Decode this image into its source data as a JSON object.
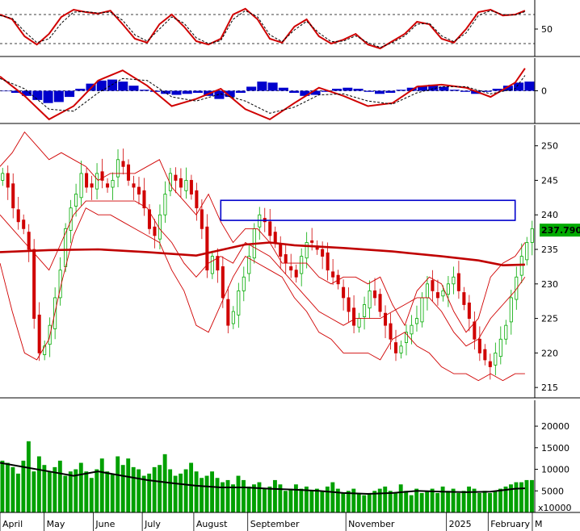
{
  "chart_data": [
    {
      "type": "line",
      "panel": "stochastic",
      "y_ticks": [
        50
      ],
      "reference_levels": [
        80,
        20
      ],
      "ylim": [
        0,
        100
      ],
      "series": [
        {
          "role": "%K",
          "color": "#d00000",
          "x": [
            0,
            5,
            10,
            15,
            20,
            25,
            30,
            35,
            40,
            45,
            50,
            55,
            60,
            65,
            70,
            75,
            80,
            85,
            90,
            95,
            100,
            105,
            110,
            115,
            120,
            125,
            130,
            135,
            140,
            145,
            150,
            155,
            160,
            165,
            170,
            175,
            180,
            185,
            190,
            195,
            200,
            205,
            210,
            214
          ],
          "values": [
            80,
            70,
            35,
            18,
            40,
            75,
            90,
            85,
            82,
            88,
            60,
            30,
            22,
            60,
            80,
            55,
            25,
            18,
            30,
            80,
            92,
            70,
            30,
            22,
            55,
            70,
            35,
            20,
            28,
            40,
            18,
            10,
            25,
            40,
            65,
            60,
            30,
            22,
            50,
            85,
            90,
            78,
            80,
            88
          ]
        },
        {
          "role": "%D",
          "color": "#000000",
          "style": "dashed",
          "x": [
            0,
            5,
            10,
            15,
            20,
            25,
            30,
            35,
            40,
            45,
            50,
            55,
            60,
            65,
            70,
            75,
            80,
            85,
            90,
            95,
            100,
            105,
            110,
            115,
            120,
            125,
            130,
            135,
            140,
            145,
            150,
            155,
            160,
            165,
            170,
            175,
            180,
            185,
            190,
            195,
            200,
            205,
            210,
            214
          ],
          "values": [
            78,
            72,
            45,
            22,
            30,
            62,
            85,
            86,
            83,
            85,
            68,
            38,
            25,
            50,
            75,
            62,
            32,
            20,
            26,
            70,
            88,
            75,
            38,
            24,
            48,
            66,
            42,
            24,
            25,
            36,
            22,
            12,
            22,
            36,
            60,
            62,
            36,
            24,
            42,
            78,
            88,
            80,
            79,
            86
          ]
        }
      ]
    },
    {
      "type": "bar",
      "panel": "macd",
      "y_ticks": [
        0
      ],
      "ylim": [
        -3.2,
        3.2
      ],
      "histogram": [
        0,
        -0.2,
        -0.5,
        -0.9,
        -1.2,
        -1.1,
        -0.6,
        0.2,
        0.7,
        1.0,
        1.1,
        0.9,
        0.5,
        0.1,
        -0.1,
        -0.3,
        -0.4,
        -0.3,
        -0.2,
        -0.5,
        -0.8,
        -0.6,
        -0.2,
        0.4,
        0.9,
        0.8,
        0.3,
        -0.2,
        -0.5,
        -0.4,
        -0.1,
        0.2,
        0.3,
        0.2,
        -0.1,
        -0.3,
        -0.2,
        0.1,
        0.3,
        0.5,
        0.6,
        0.4,
        0.1,
        -0.1,
        -0.3,
        -0.1,
        0.2,
        0.5,
        0.8,
        0.9
      ],
      "series": [
        {
          "role": "MACD",
          "color": "#d00000",
          "x": [
            0,
            10,
            20,
            30,
            40,
            50,
            60,
            70,
            80,
            90,
            100,
            110,
            120,
            130,
            140,
            150,
            160,
            170,
            180,
            190,
            200,
            210,
            214
          ],
          "values": [
            1.4,
            -0.5,
            -2.8,
            -1.5,
            1.0,
            2.0,
            0.5,
            -1.5,
            -0.8,
            0.2,
            -1.8,
            -2.8,
            -1.2,
            0.3,
            -0.5,
            -1.5,
            -1.2,
            0.4,
            0.6,
            0.3,
            -0.6,
            0.8,
            2.2
          ]
        },
        {
          "role": "Signal",
          "color": "#000000",
          "style": "dashed",
          "x": [
            0,
            10,
            20,
            30,
            40,
            50,
            60,
            70,
            80,
            90,
            100,
            110,
            120,
            130,
            140,
            150,
            160,
            170,
            180,
            190,
            200,
            210,
            214
          ],
          "values": [
            1.2,
            0.2,
            -1.8,
            -2.0,
            -0.2,
            1.2,
            1.0,
            -0.6,
            -1.0,
            -0.3,
            -1.0,
            -2.2,
            -1.6,
            -0.4,
            -0.3,
            -1.0,
            -1.3,
            -0.2,
            0.4,
            0.4,
            -0.3,
            0.2,
            1.5
          ]
        }
      ]
    },
    {
      "type": "candlestick",
      "panel": "price",
      "ylim": [
        213.5,
        253
      ],
      "y_ticks": [
        215,
        220,
        225,
        230,
        235,
        240,
        245,
        250
      ],
      "last_price": {
        "value": 237.79,
        "label": "237.7900",
        "color": "#00aa00"
      },
      "highlight_box": {
        "color": "#0000cc",
        "x_range": [
          90,
          210
        ],
        "y_range": [
          239.2,
          242.1
        ]
      },
      "close": [
        246,
        244,
        241,
        239,
        238,
        235,
        225,
        220,
        221,
        224,
        228,
        232,
        238,
        241,
        243,
        246,
        244,
        244,
        246,
        245,
        244,
        245,
        248,
        247,
        245,
        244,
        243,
        241,
        238,
        237,
        240,
        243,
        246,
        245,
        244,
        245,
        243,
        241,
        238,
        232,
        234,
        232,
        228,
        224,
        226,
        229,
        231,
        234,
        238,
        240,
        239,
        237,
        236,
        234,
        233,
        232,
        231,
        234,
        236,
        236,
        235,
        234,
        232,
        231,
        230,
        228,
        226,
        224,
        225,
        227,
        229,
        228,
        226,
        224,
        222,
        220,
        221,
        223,
        224,
        225,
        228,
        230,
        229,
        228,
        229,
        230,
        231,
        229,
        227,
        225,
        222,
        220,
        219,
        218,
        220,
        222,
        224,
        228,
        231,
        234,
        236,
        238
      ],
      "bands": [
        {
          "role": "upper",
          "color": "#d00000",
          "x": [
            0,
            5,
            10,
            15,
            20,
            25,
            30,
            35,
            40,
            45,
            50,
            55,
            60,
            65,
            70,
            75,
            80,
            85,
            90,
            95,
            100,
            105,
            110,
            115,
            120,
            125,
            130,
            135,
            140,
            145,
            150,
            155,
            160,
            165,
            170,
            175,
            180,
            185,
            190,
            195,
            200,
            205,
            210,
            214
          ],
          "values": [
            247,
            249,
            252,
            250,
            248,
            249,
            248,
            247,
            245,
            246,
            246,
            246,
            247,
            248,
            244,
            242,
            240,
            243,
            239,
            236,
            238,
            238,
            236,
            233,
            233,
            233,
            231,
            230,
            231,
            231,
            230,
            231,
            227,
            224,
            229,
            231,
            230,
            226,
            223,
            225,
            231,
            233,
            234,
            236
          ]
        },
        {
          "role": "lower",
          "color": "#d00000",
          "x": [
            0,
            5,
            10,
            15,
            20,
            25,
            30,
            35,
            40,
            45,
            50,
            55,
            60,
            65,
            70,
            75,
            80,
            85,
            90,
            95,
            100,
            105,
            110,
            115,
            120,
            125,
            130,
            135,
            140,
            145,
            150,
            155,
            160,
            165,
            170,
            175,
            180,
            185,
            190,
            195,
            200,
            205,
            210,
            214
          ],
          "values": [
            233,
            226,
            220,
            219,
            222,
            230,
            237,
            241,
            240,
            240,
            239,
            238,
            237,
            236,
            232,
            229,
            224,
            223,
            227,
            231,
            234,
            233,
            232,
            231,
            228,
            226,
            223,
            222,
            220,
            220,
            220,
            219,
            222,
            223,
            221,
            220,
            218,
            217,
            217,
            216,
            217,
            216,
            217,
            217
          ]
        },
        {
          "role": "middle",
          "color": "#d00000",
          "x": [
            0,
            5,
            10,
            15,
            20,
            25,
            30,
            35,
            40,
            45,
            50,
            55,
            60,
            65,
            70,
            75,
            80,
            85,
            90,
            95,
            100,
            105,
            110,
            115,
            120,
            125,
            130,
            135,
            140,
            145,
            150,
            155,
            160,
            165,
            170,
            175,
            180,
            185,
            190,
            195,
            200,
            205,
            210,
            214
          ],
          "values": [
            240,
            238,
            236,
            234,
            232,
            236,
            240,
            242,
            242,
            242,
            242,
            242,
            241,
            238,
            236,
            233,
            231,
            233,
            234,
            233,
            236,
            235,
            234,
            232,
            230,
            228,
            226,
            225,
            224,
            225,
            225,
            225,
            226,
            227,
            228,
            228,
            226,
            223,
            221,
            222,
            225,
            227,
            229,
            231
          ]
        },
        {
          "role": "MA200",
          "color": "#c00000",
          "width": 2.6,
          "x": [
            0,
            20,
            40,
            60,
            80,
            100,
            110,
            120,
            140,
            160,
            180,
            195,
            205,
            214
          ],
          "values": [
            234.6,
            234.9,
            235.0,
            234.6,
            234.1,
            235.7,
            236.0,
            235.6,
            235.2,
            234.7,
            234.0,
            233.4,
            232.7,
            232.8
          ]
        }
      ]
    },
    {
      "type": "bar",
      "panel": "volume",
      "unit_label": "x10000",
      "ylim": [
        0,
        26000
      ],
      "y_ticks": [
        5000,
        10000,
        15000,
        20000
      ],
      "values": [
        12000,
        11500,
        10500,
        9000,
        12000,
        16500,
        9500,
        13000,
        11000,
        9500,
        10500,
        12000,
        8500,
        9500,
        10000,
        11500,
        9500,
        8000,
        10000,
        12500,
        9500,
        9000,
        13000,
        11000,
        12500,
        10500,
        10000,
        8500,
        9000,
        10500,
        11000,
        13500,
        10000,
        8500,
        9000,
        10000,
        11500,
        9500,
        8000,
        8500,
        9500,
        8000,
        7000,
        7500,
        6500,
        8500,
        7500,
        6000,
        6500,
        7000,
        5500,
        6000,
        7500,
        6500,
        5000,
        5500,
        6500,
        5500,
        6000,
        5000,
        5500,
        5000,
        6000,
        7000,
        5500,
        4500,
        5000,
        5500,
        4500,
        4000,
        4500,
        5000,
        5500,
        6000,
        5000,
        4500,
        6500,
        5000,
        4000,
        5500,
        4500,
        5000,
        5500,
        4500,
        6000,
        5000,
        5500,
        4500,
        5000,
        6000,
        5500,
        4500,
        5000,
        4500,
        5000,
        5500,
        6000,
        6500,
        7000,
        7000,
        7500,
        7500
      ],
      "ma_color": "#000000",
      "ma": [
        {
          "x": 0,
          "v": 11500
        },
        {
          "x": 10,
          "v": 10500
        },
        {
          "x": 20,
          "v": 9500
        },
        {
          "x": 30,
          "v": 8500
        },
        {
          "x": 40,
          "v": 9500
        },
        {
          "x": 50,
          "v": 8500
        },
        {
          "x": 60,
          "v": 7500
        },
        {
          "x": 70,
          "v": 6800
        },
        {
          "x": 80,
          "v": 6200
        },
        {
          "x": 90,
          "v": 5800
        },
        {
          "x": 100,
          "v": 5800
        },
        {
          "x": 110,
          "v": 5500
        },
        {
          "x": 120,
          "v": 5300
        },
        {
          "x": 130,
          "v": 5000
        },
        {
          "x": 140,
          "v": 4500
        },
        {
          "x": 150,
          "v": 4300
        },
        {
          "x": 160,
          "v": 4500
        },
        {
          "x": 170,
          "v": 5000
        },
        {
          "x": 180,
          "v": 4800
        },
        {
          "x": 190,
          "v": 4700
        },
        {
          "x": 200,
          "v": 4800
        },
        {
          "x": 210,
          "v": 5500
        },
        {
          "x": 214,
          "v": 5600
        }
      ]
    }
  ],
  "x_axis": {
    "labels": [
      {
        "text": "April",
        "x": 0
      },
      {
        "text": "May",
        "x": 18
      },
      {
        "text": "June",
        "x": 38
      },
      {
        "text": "July",
        "x": 58
      },
      {
        "text": "August",
        "x": 79
      },
      {
        "text": "September",
        "x": 101
      },
      {
        "text": "November",
        "x": 141
      },
      {
        "text": "2025",
        "x": 182
      },
      {
        "text": "February",
        "x": 199
      },
      {
        "text": "M",
        "x": 217
      }
    ],
    "range": [
      0,
      218
    ]
  },
  "colors": {
    "up": "#00aa00",
    "down": "#d00000",
    "macd_hist": "#0000cc",
    "volume": "#00a000"
  }
}
